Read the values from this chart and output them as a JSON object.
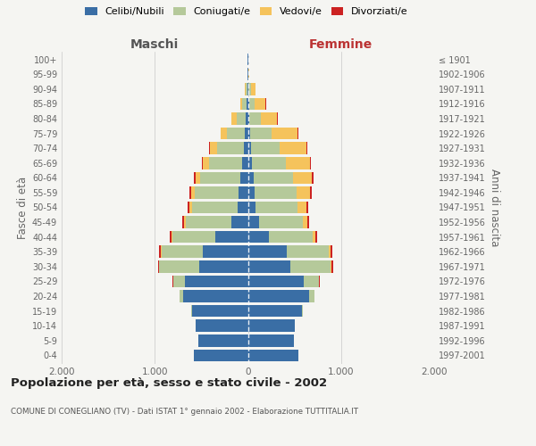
{
  "age_groups": [
    "0-4",
    "5-9",
    "10-14",
    "15-19",
    "20-24",
    "25-29",
    "30-34",
    "35-39",
    "40-44",
    "45-49",
    "50-54",
    "55-59",
    "60-64",
    "65-69",
    "70-74",
    "75-79",
    "80-84",
    "85-89",
    "90-94",
    "95-99",
    "100+"
  ],
  "birth_years": [
    "1997-2001",
    "1992-1996",
    "1987-1991",
    "1982-1986",
    "1977-1981",
    "1972-1976",
    "1967-1971",
    "1962-1966",
    "1957-1961",
    "1952-1956",
    "1947-1951",
    "1942-1946",
    "1937-1941",
    "1932-1936",
    "1927-1931",
    "1922-1926",
    "1917-1921",
    "1912-1916",
    "1907-1911",
    "1902-1906",
    "≤ 1901"
  ],
  "maschi_celibi": [
    580,
    530,
    560,
    600,
    700,
    680,
    520,
    480,
    350,
    180,
    110,
    100,
    80,
    60,
    45,
    30,
    20,
    10,
    5,
    3,
    2
  ],
  "maschi_coniugati": [
    0,
    0,
    1,
    5,
    30,
    120,
    430,
    450,
    460,
    490,
    490,
    470,
    430,
    360,
    290,
    200,
    100,
    50,
    15,
    3,
    1
  ],
  "maschi_vedovi": [
    0,
    0,
    0,
    0,
    1,
    2,
    5,
    8,
    10,
    15,
    25,
    40,
    55,
    60,
    70,
    60,
    55,
    20,
    10,
    2,
    0
  ],
  "maschi_divorziati": [
    0,
    0,
    0,
    0,
    2,
    5,
    12,
    13,
    15,
    18,
    20,
    18,
    15,
    10,
    8,
    5,
    3,
    2,
    1,
    0,
    0
  ],
  "femmine_nubili": [
    540,
    490,
    500,
    580,
    660,
    600,
    460,
    420,
    230,
    120,
    85,
    75,
    65,
    45,
    30,
    25,
    15,
    10,
    9,
    3,
    2
  ],
  "femmine_coniugate": [
    0,
    0,
    2,
    8,
    50,
    160,
    430,
    450,
    470,
    470,
    450,
    450,
    420,
    360,
    310,
    230,
    120,
    60,
    20,
    3,
    1
  ],
  "femmine_vedove": [
    0,
    0,
    0,
    1,
    3,
    5,
    10,
    18,
    25,
    50,
    90,
    140,
    200,
    260,
    290,
    280,
    180,
    120,
    55,
    10,
    3
  ],
  "femmine_divorziate": [
    0,
    0,
    0,
    1,
    3,
    8,
    15,
    15,
    18,
    20,
    22,
    20,
    18,
    12,
    10,
    8,
    5,
    3,
    1,
    0,
    0
  ],
  "colors": {
    "celibi": "#3A6EA5",
    "coniugati": "#B5C99A",
    "vedovi": "#F5C35C",
    "divorziati": "#CC2222"
  },
  "xlim": [
    -2000,
    2000
  ],
  "xticks": [
    -2000,
    -1000,
    0,
    1000,
    2000
  ],
  "xtick_labels": [
    "2.000",
    "1.000",
    "0",
    "1.000",
    "2.000"
  ],
  "title": "Popolazione per età, sesso e stato civile - 2002",
  "subtitle": "COMUNE DI CONEGLIANO (TV) - Dati ISTAT 1° gennaio 2002 - Elaborazione TUTTITALIA.IT",
  "label_maschi": "Maschi",
  "label_femmine": "Femmine",
  "ylabel_left": "Fasce di età",
  "ylabel_right": "Anni di nascita",
  "legend_labels": [
    "Celibi/Nubili",
    "Coniugati/e",
    "Vedovi/e",
    "Divorziati/e"
  ],
  "bg_color": "#f5f5f2"
}
